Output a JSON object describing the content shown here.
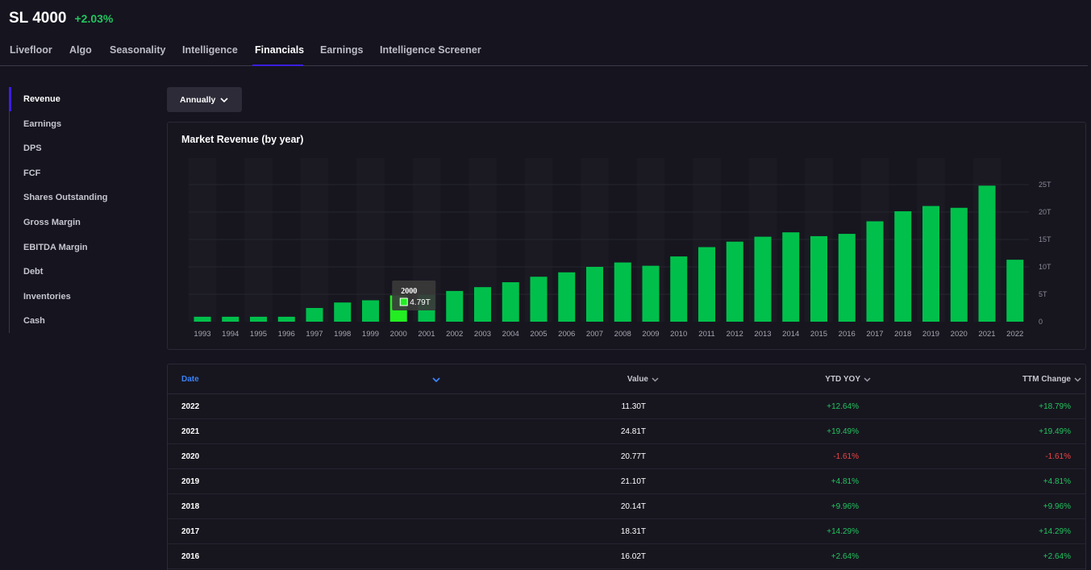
{
  "ticker": {
    "symbol": "SL 4000",
    "change": "+2.03%"
  },
  "tabs": [
    "Livefloor",
    "Algo",
    "Seasonality",
    "Intelligence",
    "Financials",
    "Earnings",
    "Intelligence Screener"
  ],
  "sidebar": [
    "Revenue",
    "Earnings",
    "DPS",
    "FCF",
    "Shares Outstanding",
    "Gross Margin",
    "EBITDA Margin",
    "Debt",
    "Inventories",
    "Cash"
  ],
  "period_dropdown": {
    "label": "Annually"
  },
  "chart_title": "Market Revenue (by year)",
  "chart_data": {
    "type": "bar",
    "title": "Market Revenue (by year)",
    "categories": [
      "1993",
      "1994",
      "1995",
      "1996",
      "1997",
      "1998",
      "1999",
      "2000",
      "2001",
      "2002",
      "2003",
      "2004",
      "2005",
      "2006",
      "2007",
      "2008",
      "2009",
      "2010",
      "2011",
      "2012",
      "2013",
      "2014",
      "2015",
      "2016",
      "2017",
      "2018",
      "2019",
      "2020",
      "2021",
      "2022"
    ],
    "values": [
      0.9,
      0.9,
      0.9,
      0.9,
      2.5,
      3.5,
      3.9,
      4.79,
      4.9,
      5.6,
      6.3,
      7.2,
      8.2,
      9.0,
      10.0,
      10.8,
      10.2,
      11.9,
      13.6,
      14.6,
      15.5,
      16.3,
      15.6,
      16.02,
      18.31,
      20.14,
      21.1,
      20.77,
      24.81,
      11.3
    ],
    "yticks": [
      "0",
      "5T",
      "10T",
      "15T",
      "20T",
      "25T"
    ],
    "ylim": [
      0,
      25
    ],
    "bar_color": "#00c04b",
    "highlight_color": "#22ee22",
    "tooltip": {
      "category": "2000",
      "value": "4.79T"
    }
  },
  "table": {
    "columns": [
      "Date",
      "Value",
      "YTD YOY",
      "TTM Change"
    ],
    "rows": [
      {
        "date": "2022",
        "value": "11.30T",
        "ytd": "+12.64%",
        "ttm": "+18.79%"
      },
      {
        "date": "2021",
        "value": "24.81T",
        "ytd": "+19.49%",
        "ttm": "+19.49%"
      },
      {
        "date": "2020",
        "value": "20.77T",
        "ytd": "-1.61%",
        "ttm": "-1.61%"
      },
      {
        "date": "2019",
        "value": "21.10T",
        "ytd": "+4.81%",
        "ttm": "+4.81%"
      },
      {
        "date": "2018",
        "value": "20.14T",
        "ytd": "+9.96%",
        "ttm": "+9.96%"
      },
      {
        "date": "2017",
        "value": "18.31T",
        "ytd": "+14.29%",
        "ttm": "+14.29%"
      },
      {
        "date": "2016",
        "value": "16.02T",
        "ytd": "+2.64%",
        "ttm": "+2.64%"
      }
    ]
  },
  "colors": {
    "accent": "#3b1fe0",
    "positive": "#22c55e",
    "negative": "#ef4444",
    "link": "#3b82f6"
  }
}
